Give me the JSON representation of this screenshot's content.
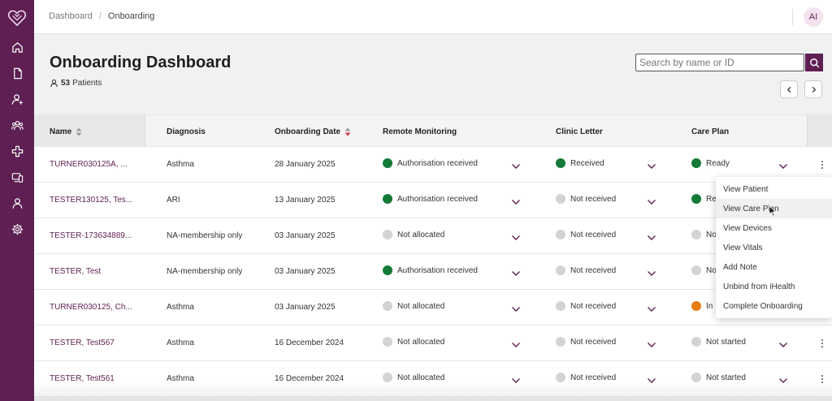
{
  "breadcrumb": {
    "home": "Dashboard",
    "current": "Onboarding"
  },
  "user": {
    "initials": "AI"
  },
  "page": {
    "title": "Onboarding Dashboard",
    "count_number": "53",
    "count_label": "Patients"
  },
  "search": {
    "placeholder": "Search by name or ID"
  },
  "columns": {
    "name": "Name",
    "diagnosis": "Diagnosis",
    "onboarding_date": "Onboarding Date",
    "remote_monitoring": "Remote Monitoring",
    "clinic_letter": "Clinic Letter",
    "care_plan": "Care Plan"
  },
  "rows": [
    {
      "name": "TURNER030125A, ...",
      "diagnosis": "Asthma",
      "date": "28 January 2025",
      "rm": "Authorisation received",
      "letter": "Received",
      "care": "Ready"
    },
    {
      "name": "TESTER130125, Tes...",
      "diagnosis": "ARI",
      "date": "13 January 2025",
      "rm": "Authorisation received",
      "letter": "Not received",
      "care": "Re"
    },
    {
      "name": "TESTER-173634889...",
      "diagnosis": "NA-membership only",
      "date": "03 January 2025",
      "rm": "Not allocated",
      "letter": "Not received",
      "care": "No"
    },
    {
      "name": "TESTER, Test",
      "diagnosis": "NA-membership only",
      "date": "03 January 2025",
      "rm": "Authorisation received",
      "letter": "Not received",
      "care": "No"
    },
    {
      "name": "TURNER030125, Ch...",
      "diagnosis": "Asthma",
      "date": "03 January 2025",
      "rm": "Not allocated",
      "letter": "Not received",
      "care": "In"
    },
    {
      "name": "TESTER, Test567",
      "diagnosis": "Asthma",
      "date": "16 December 2024",
      "rm": "Not allocated",
      "letter": "Not received",
      "care": "Not started"
    },
    {
      "name": "TESTER, Test561",
      "diagnosis": "Asthma",
      "date": "16 December 2024",
      "rm": "Not allocated",
      "letter": "Not received",
      "care": "Not started"
    }
  ],
  "row_colors": [
    {
      "rm": "#137a37",
      "letter": "#137a37",
      "care": "#137a37"
    },
    {
      "rm": "#137a37",
      "letter": "#d3d3d5",
      "care": "#137a37"
    },
    {
      "rm": "#d3d3d5",
      "letter": "#d3d3d5",
      "care": "#d3d3d5"
    },
    {
      "rm": "#137a37",
      "letter": "#d3d3d5",
      "care": "#d3d3d5"
    },
    {
      "rm": "#d3d3d5",
      "letter": "#d3d3d5",
      "care": "#e67e16"
    },
    {
      "rm": "#d3d3d5",
      "letter": "#d3d3d5",
      "care": "#d3d3d5"
    },
    {
      "rm": "#d3d3d5",
      "letter": "#d3d3d5",
      "care": "#d3d3d5"
    }
  ],
  "context_menu": [
    "View Patient",
    "View Care Plan",
    "View Devices",
    "View Vitals",
    "Add Note",
    "Unbind from iHealth",
    "Complete Onboarding"
  ],
  "colors": {
    "brand": "#5e1f52",
    "success": "#137a37",
    "neutral": "#d3d3d5",
    "warning": "#e67e16"
  },
  "icons": {
    "sidebar": [
      "home-icon",
      "document-icon",
      "user-add-icon",
      "group-icon",
      "medical-cross-icon",
      "devices-icon",
      "user-icon",
      "settings-icon"
    ]
  }
}
